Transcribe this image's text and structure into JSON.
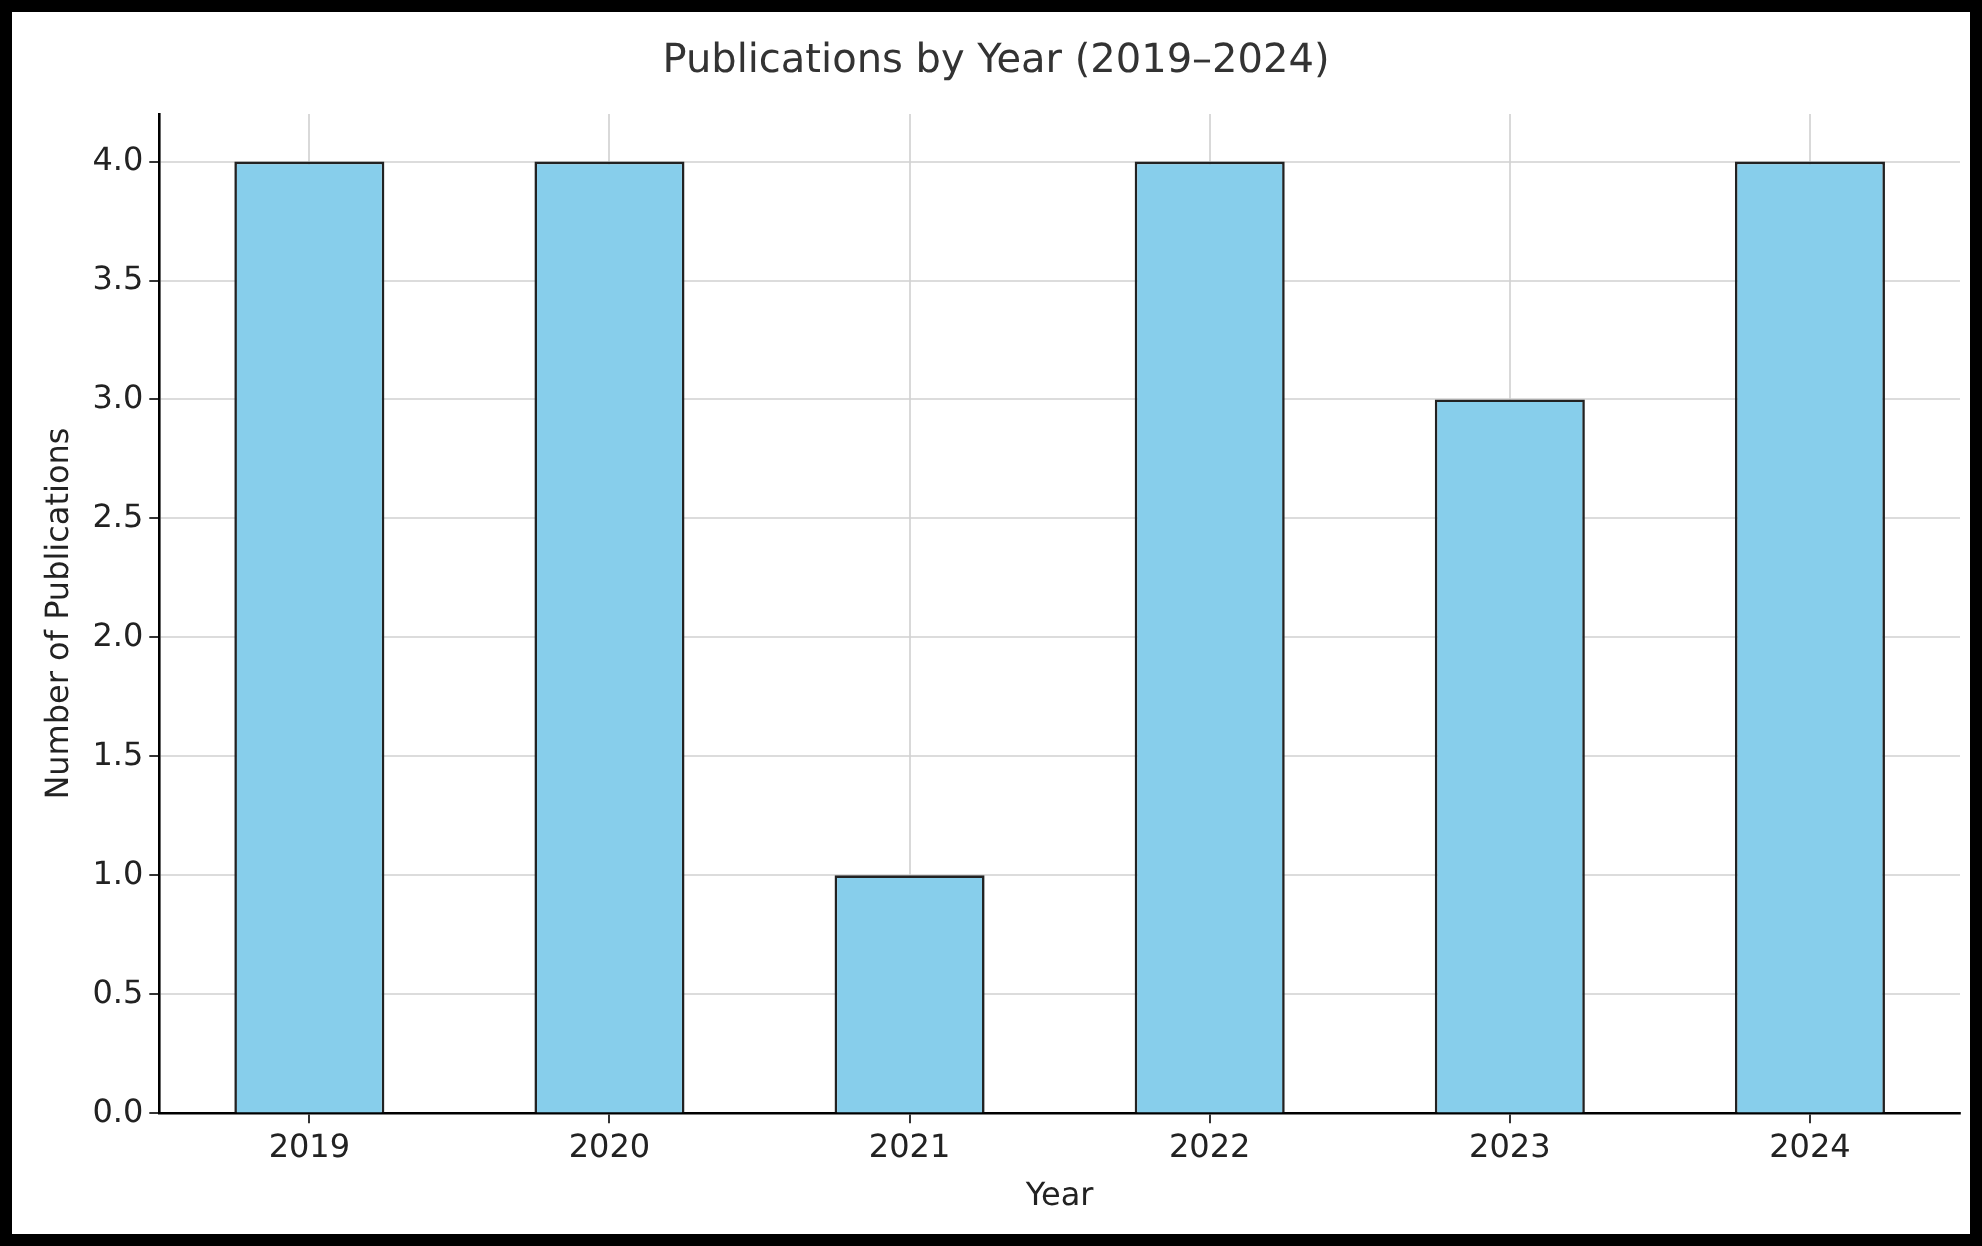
{
  "chart_data": {
    "type": "bar",
    "title": "Publications by Year (2019–2024)",
    "xlabel": "Year",
    "ylabel": "Number of Publications",
    "categories": [
      "2019",
      "2020",
      "2021",
      "2022",
      "2023",
      "2024"
    ],
    "values": [
      4,
      4,
      1,
      4,
      3,
      4
    ],
    "color": "#87ceeb",
    "ylim": [
      0,
      4.2
    ],
    "yticks": [
      {
        "value": 0,
        "label": "0.0"
      },
      {
        "value": 0.5,
        "label": "0.5"
      },
      {
        "value": 1,
        "label": "1.0"
      },
      {
        "value": 1.5,
        "label": "1.5"
      },
      {
        "value": 2,
        "label": "2.0"
      },
      {
        "value": 2.5,
        "label": "2.5"
      },
      {
        "value": 3,
        "label": "3.0"
      },
      {
        "value": 3.5,
        "label": "3.5"
      },
      {
        "value": 4,
        "label": "4.0"
      }
    ],
    "grid": true
  }
}
